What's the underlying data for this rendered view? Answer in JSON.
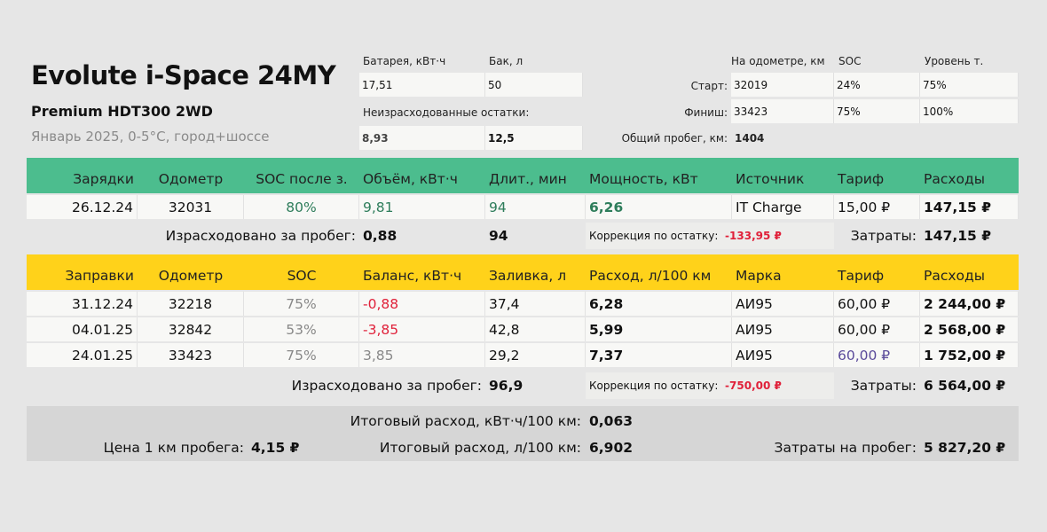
{
  "header": {
    "title": "Evolute i-Space 24MY",
    "trim": "Premium HDT300 2WD",
    "conditions": "Январь 2025, 0-5°С, город+шоссе"
  },
  "specs": {
    "battery_label": "Батарея, кВт·ч",
    "battery": "17,51",
    "tank_label": "Бак, л",
    "tank": "50",
    "remain_label": "Неизрасходованные остатки:",
    "remain_kwh": "8,93",
    "remain_l": "12,5"
  },
  "trip": {
    "odo_label": "На одометре, км",
    "soc_label": "SOC",
    "fuel_label": "Уровень т.",
    "start_label": "Старт:",
    "start": [
      "32019",
      "24%",
      "75%"
    ],
    "finish_label": "Финиш:",
    "finish": [
      "33423",
      "75%",
      "100%"
    ],
    "total_label": "Общий пробег, км:",
    "total": "1404"
  },
  "charges": {
    "headers": [
      "Зарядки",
      "Одометр",
      "SOC после з.",
      "Объём, кВт·ч",
      "Длит., мин",
      "Мощность, кВт",
      "Источник",
      "Тариф",
      "Расходы"
    ],
    "rows": [
      [
        "26.12.24",
        "32031",
        "80%",
        "9,81",
        "94",
        "6,26",
        "IT Charge",
        "15,00 ₽",
        "147,15 ₽"
      ]
    ],
    "used_label": "Израсходовано за пробег:",
    "used": "0,88",
    "duration": "94",
    "corr_label": "Коррекция по остатку:",
    "corr": "-133,95 ₽",
    "cost_label": "Затраты:",
    "cost": "147,15 ₽",
    "color": "#4cbd8e"
  },
  "fuel": {
    "headers": [
      "Заправки",
      "Одометр",
      "SOC",
      "Баланс, кВт·ч",
      "Заливка, л",
      "Расход, л/100 км",
      "Марка",
      "Тариф",
      "Расходы"
    ],
    "rows": [
      [
        "31.12.24",
        "32218",
        "75%",
        "-0,88",
        "37,4",
        "6,28",
        "АИ95",
        "60,00 ₽",
        "2 244,00 ₽"
      ],
      [
        "04.01.25",
        "32842",
        "53%",
        "-3,85",
        "42,8",
        "5,99",
        "АИ95",
        "60,00 ₽",
        "2 568,00 ₽"
      ],
      [
        "24.01.25",
        "33423",
        "75%",
        "3,85",
        "29,2",
        "7,37",
        "АИ95",
        "60,00 ₽",
        "1 752,00 ₽"
      ]
    ],
    "used_label": "Израсходовано за пробег:",
    "used": "96,9",
    "corr_label": "Коррекция по остатку:",
    "corr": "-750,00 ₽",
    "cost_label": "Затраты:",
    "cost": "6 564,00 ₽",
    "color": "#ffd21a"
  },
  "totals": {
    "kwh_label": "Итоговый расход, кВт·ч/100 км:",
    "kwh": "0,063",
    "l_label": "Итоговый расход, л/100 км:",
    "l": "6,902",
    "km_price_label": "Цена 1 км пробега:",
    "km_price": "4,15 ₽",
    "trip_cost_label": "Затраты на пробег:",
    "trip_cost": "5 827,20 ₽"
  }
}
